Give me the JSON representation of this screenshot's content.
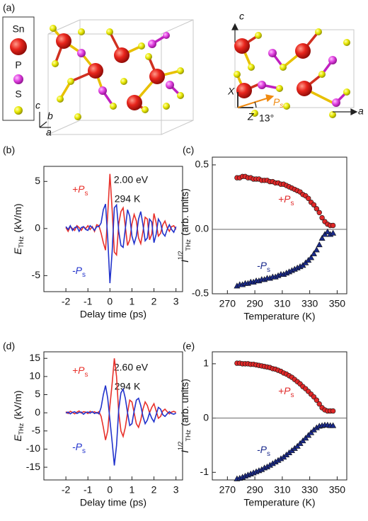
{
  "structure": {
    "label": "(a)",
    "legend": [
      "Sn",
      "P",
      "S"
    ],
    "left_axes": [
      "c",
      "b",
      "a"
    ],
    "right_axes": [
      "c",
      "a",
      "X",
      "Z"
    ],
    "polarization": "P",
    "polarization_sub": "s",
    "angle": "13°"
  },
  "chart_data": [
    {
      "type": "line",
      "panel": "(b)",
      "xlabel": "Delay time (ps)",
      "ylabel": {
        "text": "E",
        "sub": "THz",
        "unit": "(kV/m)"
      },
      "annotations": [
        "2.00 eV",
        "294 K"
      ],
      "x": [
        -2,
        -1.9,
        -1.8,
        -1.7,
        -1.6,
        -1.5,
        -1.4,
        -1.3,
        -1.2,
        -1.1,
        -1,
        -0.9,
        -0.8,
        -0.7,
        -0.6,
        -0.5,
        -0.4,
        -0.3,
        -0.2,
        -0.1,
        0,
        0.1,
        0.2,
        0.3,
        0.4,
        0.5,
        0.6,
        0.7,
        0.8,
        0.9,
        1,
        1.1,
        1.2,
        1.3,
        1.4,
        1.5,
        1.6,
        1.7,
        1.8,
        1.9,
        2,
        2.1,
        2.2,
        2.3,
        2.4,
        2.5,
        2.6,
        2.7,
        2.8,
        2.9,
        3
      ],
      "series": [
        {
          "name": "+P",
          "sub": "s",
          "color": "#e8302a",
          "values": [
            0.1,
            -0.3,
            0.2,
            0,
            -0.2,
            0.3,
            0.1,
            -0.2,
            0.2,
            0,
            0.3,
            -0.1,
            0.2,
            -0.3,
            0.4,
            0.3,
            -0.5,
            -1.5,
            -2.3,
            1.5,
            5.8,
            2.0,
            -2.5,
            -2.8,
            0.5,
            1.8,
            2.2,
            0.2,
            -1.8,
            -1.2,
            0.5,
            1.5,
            0.8,
            -1.0,
            -1.6,
            -0.3,
            1.2,
            1.0,
            -1.2,
            -0.6,
            1.6,
            0.6,
            -0.8,
            -0.5,
            0.4,
            0.8,
            0.1,
            -0.3,
            0.2,
            0.3,
            -0.1
          ]
        },
        {
          "name": "-P",
          "sub": "s",
          "color": "#2233cc",
          "values": [
            0.2,
            -0.1,
            0.3,
            -0.2,
            0.1,
            0.2,
            -0.3,
            0.1,
            0.2,
            -0.1,
            -0.2,
            0.3,
            0.1,
            -0.2,
            0.2,
            0.2,
            0.6,
            2.0,
            2.6,
            -1.0,
            -5.8,
            -2.5,
            2.2,
            2.5,
            -0.3,
            -1.8,
            -2.0,
            0.0,
            2.0,
            1.3,
            -0.8,
            -1.6,
            -0.8,
            1.0,
            1.8,
            0.4,
            -1.3,
            -1.0,
            1.0,
            0.7,
            -1.5,
            -0.6,
            1.0,
            0.6,
            -0.5,
            -0.8,
            -0.1,
            0.4,
            -0.1,
            -0.4,
            0.2
          ]
        }
      ],
      "xlim": [
        -3,
        3.3
      ],
      "xticks": [
        -2,
        -1,
        0,
        1,
        2,
        3
      ],
      "ylim": [
        -6.7,
        6.6
      ],
      "yticks": [
        -5,
        0,
        5
      ]
    },
    {
      "type": "scatter",
      "panel": "(c)",
      "xlabel": "Temperature (K)",
      "ylabel": {
        "text": "I",
        "sup": "1/2",
        "sub": "THz",
        "unit": "(arb. units)"
      },
      "zero_line": true,
      "x": [
        277,
        279,
        281,
        283,
        285,
        287,
        289,
        291,
        293,
        295,
        297,
        299,
        301,
        303,
        305,
        307,
        309,
        311,
        313,
        315,
        317,
        319,
        321,
        323,
        325,
        327,
        329,
        331,
        333,
        335,
        337,
        339,
        341,
        343,
        345,
        347
      ],
      "series": [
        {
          "name": "+P",
          "sub": "s",
          "color": "#e02828",
          "marker": "circle",
          "values": [
            0.4,
            0.4,
            0.41,
            0.41,
            0.4,
            0.4,
            0.39,
            0.39,
            0.39,
            0.38,
            0.38,
            0.38,
            0.37,
            0.37,
            0.36,
            0.36,
            0.35,
            0.35,
            0.34,
            0.33,
            0.32,
            0.31,
            0.3,
            0.29,
            0.27,
            0.26,
            0.24,
            0.21,
            0.19,
            0.16,
            0.13,
            0.09,
            0.06,
            0.04,
            0.03,
            0.03
          ]
        },
        {
          "name": "-P",
          "sub": "s",
          "color": "#1a2a8c",
          "marker": "triangle",
          "values": [
            -0.44,
            -0.43,
            -0.43,
            -0.42,
            -0.42,
            -0.41,
            -0.41,
            -0.4,
            -0.4,
            -0.39,
            -0.39,
            -0.38,
            -0.38,
            -0.37,
            -0.37,
            -0.36,
            -0.35,
            -0.35,
            -0.34,
            -0.33,
            -0.32,
            -0.31,
            -0.3,
            -0.29,
            -0.28,
            -0.26,
            -0.24,
            -0.22,
            -0.19,
            -0.16,
            -0.12,
            -0.07,
            -0.04,
            -0.02,
            -0.04,
            -0.03
          ]
        }
      ],
      "xlim": [
        259,
        357
      ],
      "xticks": [
        270,
        290,
        310,
        330,
        350
      ],
      "ylim": [
        -0.5,
        0.56
      ],
      "yticks": [
        -0.5,
        {
          "value": 0,
          "label": "0.0"
        },
        0.5
      ]
    },
    {
      "type": "line",
      "panel": "(d)",
      "xlabel": "Delay time (ps)",
      "ylabel": {
        "text": "E",
        "sub": "THz",
        "unit": "(kV/m)"
      },
      "annotations": [
        "2.60 eV",
        "294 K"
      ],
      "x": [
        -2,
        -1.9,
        -1.8,
        -1.7,
        -1.6,
        -1.5,
        -1.4,
        -1.3,
        -1.2,
        -1.1,
        -1,
        -0.9,
        -0.8,
        -0.7,
        -0.6,
        -0.5,
        -0.4,
        -0.3,
        -0.2,
        -0.1,
        0,
        0.1,
        0.2,
        0.3,
        0.4,
        0.5,
        0.6,
        0.7,
        0.8,
        0.9,
        1,
        1.1,
        1.2,
        1.3,
        1.4,
        1.5,
        1.6,
        1.7,
        1.8,
        1.9,
        2,
        2.1,
        2.2,
        2.3,
        2.4,
        2.5,
        2.6,
        2.7,
        2.8,
        2.9,
        3
      ],
      "series": [
        {
          "name": "+P",
          "sub": "s",
          "color": "#e8302a",
          "values": [
            0.3,
            -0.2,
            0.4,
            0.1,
            -0.3,
            0.2,
            0.5,
            -0.1,
            0.3,
            0.2,
            -0.2,
            0.4,
            0.1,
            0.3,
            -0.1,
            0.3,
            -1,
            -4,
            -7.5,
            -5,
            2,
            8,
            15,
            10,
            0,
            -5,
            -6.5,
            -4,
            0,
            3.5,
            3,
            0,
            -3,
            -4,
            -2,
            1,
            3,
            2,
            0,
            1.5,
            2.5,
            0.5,
            -1.5,
            -1,
            0.5,
            1.0,
            0.3,
            -0.3,
            0.2,
            0.4,
            0.1
          ]
        },
        {
          "name": "-P",
          "sub": "s",
          "color": "#2233cc",
          "values": [
            -0.1,
            0.2,
            -0.3,
            0.1,
            0.3,
            -0.2,
            0.1,
            0.2,
            -0.4,
            0.1,
            0.2,
            -0.1,
            0.3,
            -0.2,
            0.1,
            -0.3,
            1.5,
            5,
            7.5,
            4,
            -2,
            -8,
            -14.5,
            -9,
            1,
            5.5,
            6.5,
            4,
            0,
            -3.5,
            -3,
            0.5,
            3.5,
            4,
            2,
            -1,
            -3,
            -2,
            0,
            -1.5,
            -2.5,
            -0.5,
            1.5,
            1,
            -0.5,
            -1,
            -0.3,
            0.3,
            -0.2,
            -0.4,
            -0.1
          ]
        }
      ],
      "xlim": [
        -3,
        3.3
      ],
      "xticks": [
        -2,
        -1,
        0,
        1,
        2,
        3
      ],
      "ylim": [
        -18.5,
        16.8
      ],
      "yticks": [
        -15,
        -10,
        -5,
        0,
        5,
        10,
        15
      ]
    },
    {
      "type": "scatter",
      "panel": "(e)",
      "xlabel": "Temperature (K)",
      "ylabel": {
        "text": "I",
        "sup": "1/2",
        "sub": "THz",
        "unit": "(arb. units)"
      },
      "zero_line": true,
      "x": [
        277,
        279,
        281,
        283,
        285,
        287,
        289,
        291,
        293,
        295,
        297,
        299,
        301,
        303,
        305,
        307,
        309,
        311,
        313,
        315,
        317,
        319,
        321,
        323,
        325,
        327,
        329,
        331,
        333,
        335,
        337,
        339,
        341,
        343,
        345,
        347
      ],
      "series": [
        {
          "name": "+P",
          "sub": "s",
          "color": "#e02828",
          "marker": "circle",
          "values": [
            1.01,
            1.01,
            1.0,
            1.0,
            1.0,
            0.99,
            0.99,
            0.98,
            0.97,
            0.96,
            0.95,
            0.94,
            0.93,
            0.91,
            0.9,
            0.88,
            0.86,
            0.83,
            0.81,
            0.78,
            0.75,
            0.71,
            0.67,
            0.63,
            0.58,
            0.54,
            0.49,
            0.44,
            0.39,
            0.33,
            0.26,
            0.19,
            0.15,
            0.13,
            0.13,
            0.13
          ]
        },
        {
          "name": "-P",
          "sub": "s",
          "color": "#1a2a8c",
          "marker": "triangle",
          "values": [
            -1.12,
            -1.11,
            -1.09,
            -1.07,
            -1.05,
            -1.03,
            -1.01,
            -0.99,
            -0.97,
            -0.95,
            -0.92,
            -0.9,
            -0.87,
            -0.84,
            -0.81,
            -0.78,
            -0.75,
            -0.72,
            -0.68,
            -0.64,
            -0.6,
            -0.56,
            -0.52,
            -0.47,
            -0.42,
            -0.37,
            -0.32,
            -0.27,
            -0.22,
            -0.18,
            -0.15,
            -0.14,
            -0.13,
            -0.13,
            -0.14,
            -0.14
          ]
        }
      ],
      "xlim": [
        259,
        357
      ],
      "xticks": [
        270,
        290,
        310,
        330,
        350
      ],
      "ylim": [
        -1.14,
        1.22
      ],
      "yticks": [
        -1,
        0,
        1
      ]
    }
  ]
}
